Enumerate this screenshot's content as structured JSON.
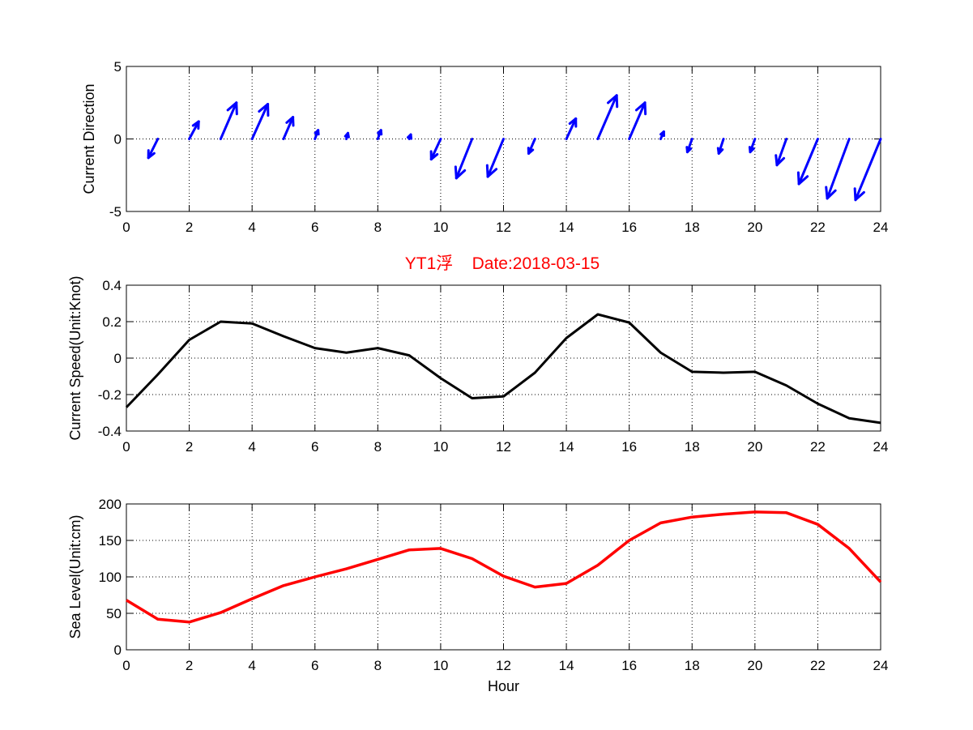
{
  "title": "YT1浮    Date:2018-03-15",
  "title_color": "#ff0000",
  "chart_data": [
    {
      "type": "quiver",
      "ylabel": "Current Direction",
      "xlabel": "",
      "xlim": [
        0,
        24
      ],
      "ylim": [
        -5,
        5
      ],
      "xticks": [
        0,
        2,
        4,
        6,
        8,
        10,
        12,
        14,
        16,
        18,
        20,
        22,
        24
      ],
      "yticks": [
        -5,
        0,
        5
      ],
      "grid": true,
      "color": "#0000ff",
      "x": [
        1,
        2,
        3,
        4,
        5,
        6,
        7,
        8,
        9,
        10,
        11,
        12,
        13,
        14,
        15,
        16,
        17,
        18,
        19,
        20,
        21,
        22,
        23,
        24
      ],
      "u": [
        -0.3,
        0.3,
        0.5,
        0.5,
        0.3,
        0.1,
        0.05,
        0.1,
        0.05,
        -0.3,
        -0.5,
        -0.5,
        -0.2,
        0.3,
        0.6,
        0.5,
        0.1,
        -0.15,
        -0.15,
        -0.15,
        -0.3,
        -0.6,
        -0.7,
        -0.8
      ],
      "v": [
        -1.3,
        1.2,
        2.5,
        2.4,
        1.5,
        0.6,
        0.4,
        0.6,
        0.3,
        -1.4,
        -2.7,
        -2.6,
        -1.0,
        1.4,
        3.0,
        2.5,
        0.5,
        -0.9,
        -1.0,
        -0.9,
        -1.8,
        -3.1,
        -4.1,
        -4.2
      ]
    },
    {
      "type": "line",
      "ylabel": "Current Speed(Unit:Knot)",
      "xlabel": "",
      "xlim": [
        0,
        24
      ],
      "ylim": [
        -0.4,
        0.4
      ],
      "xticks": [
        0,
        2,
        4,
        6,
        8,
        10,
        12,
        14,
        16,
        18,
        20,
        22,
        24
      ],
      "yticks": [
        -0.4,
        -0.2,
        0,
        0.2,
        0.4
      ],
      "ytick_labels": [
        "-0.4",
        "-0.2",
        "0",
        "0.2",
        "0.4"
      ],
      "grid": true,
      "color": "#000000",
      "x": [
        0,
        1,
        2,
        3,
        4,
        5,
        6,
        7,
        8,
        9,
        10,
        11,
        12,
        13,
        14,
        15,
        16,
        17,
        18,
        19,
        20,
        21,
        22,
        23,
        24
      ],
      "y": [
        -0.27,
        -0.09,
        0.1,
        0.2,
        0.19,
        0.12,
        0.055,
        0.03,
        0.055,
        0.015,
        -0.11,
        -0.22,
        -0.21,
        -0.08,
        0.11,
        0.24,
        0.195,
        0.03,
        -0.075,
        -0.08,
        -0.075,
        -0.15,
        -0.25,
        -0.33,
        -0.355
      ]
    },
    {
      "type": "line",
      "ylabel": "Sea Level(Unit:cm)",
      "xlabel": "Hour",
      "xlim": [
        0,
        24
      ],
      "ylim": [
        0,
        200
      ],
      "xticks": [
        0,
        2,
        4,
        6,
        8,
        10,
        12,
        14,
        16,
        18,
        20,
        22,
        24
      ],
      "yticks": [
        0,
        50,
        100,
        150,
        200
      ],
      "grid": true,
      "color": "#ff0000",
      "x": [
        0,
        1,
        2,
        3,
        4,
        5,
        6,
        7,
        8,
        9,
        10,
        11,
        12,
        13,
        14,
        15,
        16,
        17,
        18,
        19,
        20,
        21,
        22,
        23,
        24
      ],
      "y": [
        68,
        42,
        38,
        51,
        70,
        88,
        100,
        111,
        124,
        137,
        139,
        125,
        101,
        86,
        91,
        116,
        150,
        174,
        182,
        186,
        189,
        188,
        172,
        139,
        93
      ]
    }
  ]
}
